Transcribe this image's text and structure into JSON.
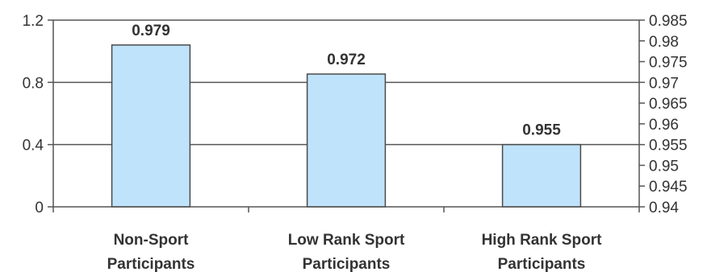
{
  "chart_data": {
    "type": "bar",
    "categories": [
      [
        "Non-Sport",
        "Participants"
      ],
      [
        "Low Rank Sport",
        "Participants"
      ],
      [
        "High Rank Sport",
        "Participants"
      ]
    ],
    "values": [
      0.979,
      0.972,
      0.955
    ],
    "data_labels": [
      "0.979",
      "0.972",
      "0.955"
    ],
    "y_left": {
      "ylim": [
        0,
        1.2
      ],
      "ticks": [
        0,
        0.4,
        0.8,
        1.2
      ],
      "tick_labels": [
        "0",
        "0.4",
        "0.8",
        "1.2"
      ]
    },
    "y_right": {
      "ylim": [
        0.94,
        0.985
      ],
      "ticks": [
        0.94,
        0.945,
        0.95,
        0.955,
        0.96,
        0.965,
        0.97,
        0.975,
        0.98,
        0.985
      ],
      "tick_labels": [
        "0.94",
        "0.945",
        "0.95",
        "0.955",
        "0.96",
        "0.965",
        "0.97",
        "0.975",
        "0.98",
        "0.985"
      ]
    },
    "values_axis": "y_right",
    "grid": true,
    "bar_color": "#bfe3fb",
    "bar_edge_color": "#4a4a4a",
    "axis_color": "#555555"
  }
}
